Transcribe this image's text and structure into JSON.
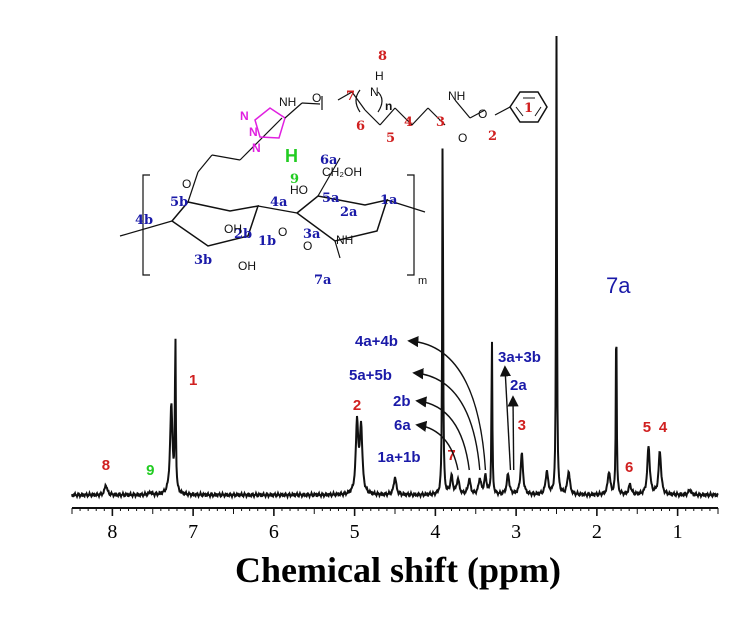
{
  "chart_data": {
    "type": "line",
    "title": "",
    "xlabel": "Chemical shift (ppm)",
    "ylabel": "",
    "xlim": [
      8.5,
      0.5
    ],
    "x_reversed": true,
    "x_ticks": [
      "8",
      "7",
      "6",
      "5",
      "4",
      "3",
      "2",
      "1"
    ],
    "grid": false,
    "series": [
      {
        "peaks": [
          {
            "x": 8.08,
            "y": 0.04
          },
          {
            "x": 7.53,
            "y": 0.01
          },
          {
            "x": 7.27,
            "y": 0.35
          },
          {
            "x": 7.22,
            "y": 0.62
          },
          {
            "x": 4.97,
            "y": 0.28
          },
          {
            "x": 4.92,
            "y": 0.26
          },
          {
            "x": 4.5,
            "y": 0.07
          },
          {
            "x": 3.91,
            "y": 1.48
          },
          {
            "x": 3.8,
            "y": 0.07
          },
          {
            "x": 3.72,
            "y": 0.06
          },
          {
            "x": 3.58,
            "y": 0.06
          },
          {
            "x": 3.45,
            "y": 0.06
          },
          {
            "x": 3.38,
            "y": 0.07
          },
          {
            "x": 3.3,
            "y": 0.62
          },
          {
            "x": 3.1,
            "y": 0.08
          },
          {
            "x": 2.93,
            "y": 0.16
          },
          {
            "x": 2.62,
            "y": 0.09
          },
          {
            "x": 2.5,
            "y": 1.8
          },
          {
            "x": 2.35,
            "y": 0.09
          },
          {
            "x": 1.85,
            "y": 0.09
          },
          {
            "x": 1.76,
            "y": 0.73
          },
          {
            "x": 1.59,
            "y": 0.04
          },
          {
            "x": 1.36,
            "y": 0.19
          },
          {
            "x": 1.22,
            "y": 0.17
          },
          {
            "x": 0.85,
            "y": 0.02
          }
        ]
      }
    ],
    "peak_labels": [
      {
        "text": "8",
        "x": 8.08,
        "color": "#d02020"
      },
      {
        "text": "9",
        "x": 7.53,
        "color": "#22cc22"
      },
      {
        "text": "1",
        "x": 7.0,
        "color": "#d02020"
      },
      {
        "text": "2",
        "x": 4.97,
        "color": "#d02020"
      },
      {
        "text": "1a+1b",
        "x": 4.45,
        "color": "#1a1aa8"
      },
      {
        "text": "7",
        "x": 3.8,
        "color": "#d02020"
      },
      {
        "text": "3",
        "x": 2.93,
        "color": "#d02020"
      },
      {
        "text": "5",
        "x": 1.38,
        "color": "#d02020"
      },
      {
        "text": "4",
        "x": 1.18,
        "color": "#d02020"
      },
      {
        "text": "6",
        "x": 1.6,
        "color": "#d02020"
      }
    ],
    "arrow_labels": [
      {
        "text": "4a+4b",
        "target_x": 3.38
      },
      {
        "text": "5a+5b",
        "target_x": 3.45
      },
      {
        "text": "2b",
        "target_x": 3.58
      },
      {
        "text": "6a",
        "target_x": 3.72
      },
      {
        "text": "3a+3b",
        "target_x": 3.07
      },
      {
        "text": "2a",
        "target_x": 3.03
      }
    ],
    "annotation_7a": {
      "text": "7a",
      "x": 1.76
    }
  },
  "molecule": {
    "labels": {
      "n8": "8",
      "n7": "7",
      "n6": "6",
      "n5": "5",
      "n4": "4",
      "n3": "3",
      "n2": "2",
      "n1": "1",
      "n9": "9",
      "H": "H",
      "NH": "N",
      "NH_H": "H",
      "n": "n",
      "m": "m",
      "s6a": "6a",
      "s5a": "5a",
      "s4a": "4a",
      "s2a": "2a",
      "s1a": "1a",
      "s3a": "3a",
      "s5b": "5b",
      "s4b": "4b",
      "s2b": "2b",
      "s1b": "1b",
      "s3b": "3b",
      "s7a": "7a",
      "ch2oh": "CH₂OH",
      "ho": "HO",
      "oh1": "OH",
      "oh2": "OH",
      "nh1": "NH",
      "nh2": "NH",
      "nh3": "NH",
      "o1": "O",
      "o2": "O",
      "o3": "O",
      "o4": "O",
      "o5": "O",
      "o6": "O"
    }
  },
  "colors": {
    "red": "#d02020",
    "blue": "#1a1aa8",
    "green": "#22cc22",
    "magenta": "#e020e0",
    "black": "#111111"
  }
}
